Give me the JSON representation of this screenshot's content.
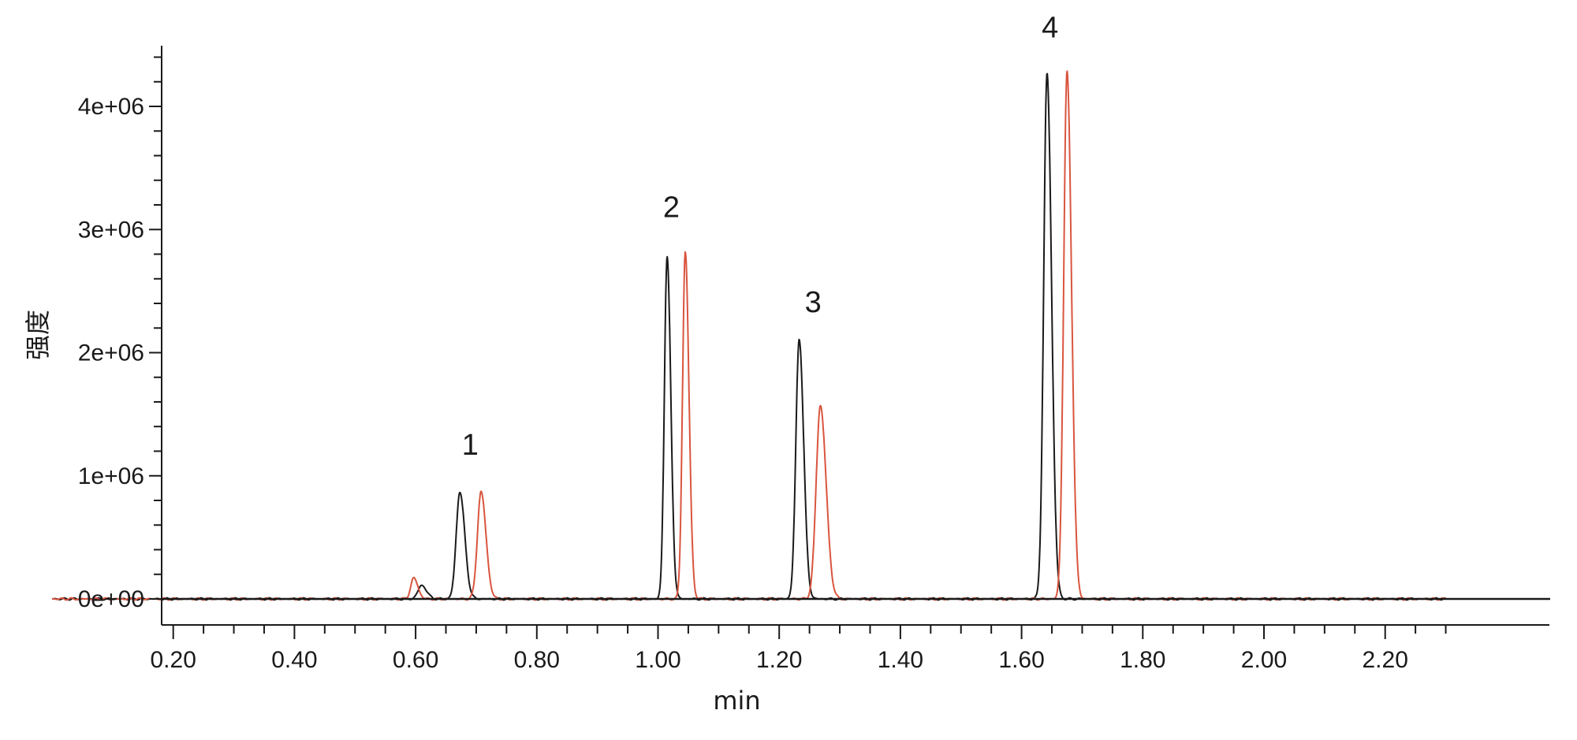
{
  "chart_data": {
    "type": "line",
    "title": "",
    "xlabel": "min",
    "ylabel": "强度",
    "xlim": [
      0.0,
      2.3
    ],
    "ylim": [
      -220000,
      4600000
    ],
    "x_ticks": [
      {
        "value": 0.2,
        "label": "0.20"
      },
      {
        "value": 0.4,
        "label": "0.40"
      },
      {
        "value": 0.6,
        "label": "0.60"
      },
      {
        "value": 0.8,
        "label": "0.80"
      },
      {
        "value": 1.0,
        "label": "1.00"
      },
      {
        "value": 1.2,
        "label": "1.20"
      },
      {
        "value": 1.4,
        "label": "1.40"
      },
      {
        "value": 1.6,
        "label": "1.60"
      },
      {
        "value": 1.8,
        "label": "1.80"
      },
      {
        "value": 2.0,
        "label": "2.00"
      },
      {
        "value": 2.2,
        "label": "2.20"
      }
    ],
    "y_ticks": [
      {
        "value": 0,
        "label": "0e+00"
      },
      {
        "value": 1000000,
        "label": "1e+06"
      },
      {
        "value": 2000000,
        "label": "2e+06"
      },
      {
        "value": 3000000,
        "label": "3e+06"
      },
      {
        "value": 4000000,
        "label": "4e+06"
      }
    ],
    "grid": false,
    "legend": "none",
    "series": [
      {
        "color": "#1a1a1a",
        "peaks": [
          {
            "rt": 0.61,
            "height": 110000,
            "width": 0.006
          },
          {
            "rt": 0.673,
            "height": 870000,
            "width": 0.006
          },
          {
            "rt": 1.015,
            "height": 2780000,
            "width": 0.0045
          },
          {
            "rt": 1.233,
            "height": 2110000,
            "width": 0.0055
          },
          {
            "rt": 1.642,
            "height": 4270000,
            "width": 0.0055
          }
        ]
      },
      {
        "color": "#d9553f",
        "peaks": [
          {
            "rt": 0.597,
            "height": 170000,
            "width": 0.005
          },
          {
            "rt": 0.708,
            "height": 870000,
            "width": 0.006
          },
          {
            "rt": 1.045,
            "height": 2820000,
            "width": 0.0045
          },
          {
            "rt": 1.268,
            "height": 1570000,
            "width": 0.007
          },
          {
            "rt": 1.675,
            "height": 4280000,
            "width": 0.0055
          }
        ]
      }
    ],
    "annotations": [
      {
        "text": "1",
        "x": 0.69,
        "y": 1170000
      },
      {
        "text": "2",
        "x": 1.022,
        "y": 3100000
      },
      {
        "text": "3",
        "x": 1.256,
        "y": 2330000
      },
      {
        "text": "4",
        "x": 1.647,
        "y": 4560000
      }
    ]
  }
}
